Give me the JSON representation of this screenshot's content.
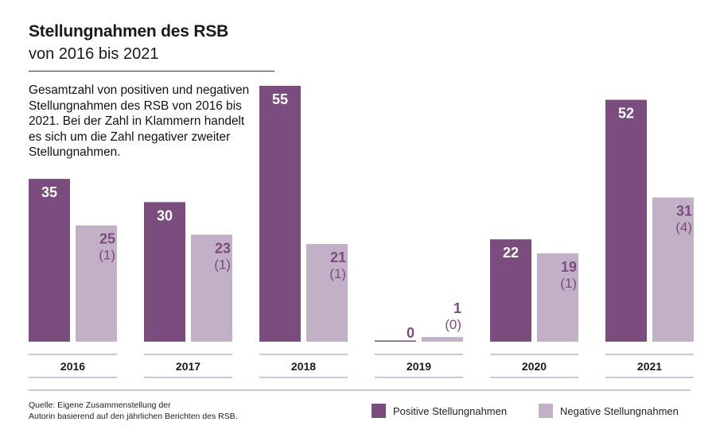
{
  "title": "Stellungnahmen des RSB",
  "subtitle": "von 2016 bis 2021",
  "description": "Gesamtzahl von positiven und negativen Stellungnahmen des RSB von 2016 bis 2021. Bei der Zahl in Klammern handelt es sich um die Zahl negativer zweiter Stellungnahmen.",
  "source": {
    "line1": "Quelle: Eigene Zusammenstellung der",
    "line2": "Autorin basierend auf den jährlichen Berichten des RSB."
  },
  "legend": {
    "positive": "Positive Stellungnahmen",
    "negative": "Negative Stellungnahmen"
  },
  "colors": {
    "positive": "#7b4d7f",
    "negative": "#c2b0c6",
    "rule": "#a58aa8"
  },
  "chart_data": {
    "type": "bar",
    "title": "Stellungnahmen des RSB",
    "subtitle": "von 2016 bis 2021",
    "xlabel": "",
    "ylabel": "",
    "ylim": [
      0,
      55
    ],
    "grid": false,
    "legend_position": "bottom-right",
    "categories": [
      "2016",
      "2017",
      "2018",
      "2019",
      "2020",
      "2021"
    ],
    "series": [
      {
        "name": "Positive Stellungnahmen",
        "values": [
          35,
          30,
          55,
          0,
          22,
          52
        ]
      },
      {
        "name": "Negative Stellungnahmen",
        "values": [
          25,
          23,
          21,
          1,
          19,
          31
        ],
        "second_negative": [
          "(1)",
          "(1)",
          "(1)",
          "(0)",
          "(1)",
          "(4)"
        ]
      }
    ]
  }
}
